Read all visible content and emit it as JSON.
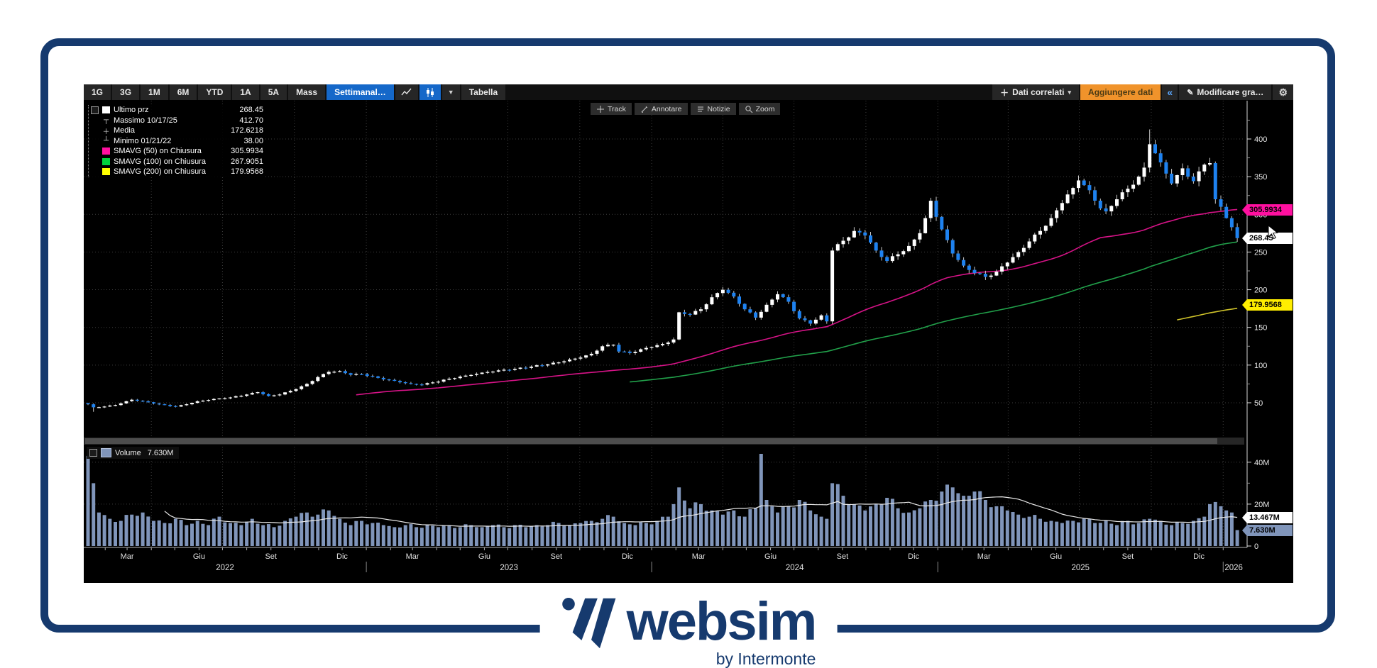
{
  "brand": {
    "logo_text": "websim",
    "logo_sub": "by Intermonte",
    "navy": "#163a6e"
  },
  "toolbar": {
    "ranges": [
      "1G",
      "3G",
      "1M",
      "6M",
      "YTD",
      "1A",
      "5A",
      "Mass"
    ],
    "period_label": "Settimanal…",
    "table_label": "Tabella",
    "related_data_label": "Dati correlati",
    "add_data_label": "Aggiungere dati",
    "collapse_label": "«",
    "modify_label": "Modificare gra…",
    "selected_color": "#1568c9",
    "add_data_color": "#f0932b"
  },
  "mini_toolbar": [
    {
      "icon": "track-icon",
      "label": "Track"
    },
    {
      "icon": "annotate-icon",
      "label": "Annotare"
    },
    {
      "icon": "news-icon",
      "label": "Notizie"
    },
    {
      "icon": "zoom-icon",
      "label": "Zoom"
    }
  ],
  "legend": [
    {
      "icon": "white-square",
      "label": "Ultimo prz",
      "value": "268.45"
    },
    {
      "icon": "high-marker",
      "label": "Massimo 10/17/25",
      "value": "412.70"
    },
    {
      "icon": "mean-marker",
      "label": "Media",
      "value": "172.6218"
    },
    {
      "icon": "low-marker",
      "label": "Minimo 01/21/22",
      "value": "38.00"
    },
    {
      "swatch": "#ff10a0",
      "label": "SMAVG (50)  on Chiusura",
      "value": "305.9934"
    },
    {
      "swatch": "#00d23c",
      "label": "SMAVG (100)  on Chiusura",
      "value": "267.9051"
    },
    {
      "swatch": "#ffff00",
      "label": "SMAVG (200)  on Chiusura",
      "value": "179.9568"
    }
  ],
  "volume_legend": {
    "label": "Volume",
    "value": "7.630M"
  },
  "price_axis": {
    "tick_values": [
      50,
      100,
      150,
      200,
      250,
      300,
      350,
      400
    ],
    "tags": [
      {
        "text": "305.9934",
        "color": "#ff10a0",
        "value": 305.9934
      },
      {
        "text": "268.45",
        "color": "#ffffff",
        "value": 268.45
      },
      {
        "text": "179.9568",
        "color": "#ffee00",
        "value": 179.9568
      }
    ]
  },
  "volume_axis": {
    "ticks": [
      {
        "value": 40,
        "label": "40M"
      },
      {
        "value": 20,
        "label": "20M"
      },
      {
        "value": 0,
        "label": "0"
      }
    ],
    "tags": [
      {
        "text": "13.467M",
        "color": "#ffffff",
        "value": 13.467
      },
      {
        "text": "7.630M",
        "color": "#8095ba",
        "value": 7.63
      }
    ]
  },
  "x_axis": {
    "month_labels": [
      "Mar",
      "Giu",
      "Set",
      "Dic"
    ],
    "label_month_indices": [
      2,
      5,
      8,
      11
    ],
    "years": [
      2022,
      2023,
      2024,
      2025,
      2026
    ]
  },
  "chart_data": {
    "type": "candlestick",
    "period": "weekly",
    "start_date": "2022-01-10",
    "weeks": 211,
    "max": {
      "date": "10/17/25",
      "value": 412.7,
      "week": 194
    },
    "min": {
      "date": "01/21/22",
      "value": 38.0,
      "week": 1
    },
    "last_close": 268.45,
    "last_volume_m": 7.63,
    "volume_ma_last_m": 13.467,
    "up_color": "#ffffff",
    "down_color": "#1e82f0",
    "wick_color": "#c9c9c9",
    "volume_color": "#8095ba",
    "grid_color": "#3e3e3e",
    "sma": [
      {
        "period": 50,
        "color": "#d61387",
        "last": 305.9934
      },
      {
        "period": 100,
        "color": "#21a04a",
        "last": 267.9051
      },
      {
        "period": 200,
        "color": "#cfc32a",
        "last": 179.9568
      }
    ],
    "close_anchors": [
      [
        0,
        48
      ],
      [
        1,
        44
      ],
      [
        3,
        45
      ],
      [
        5,
        47
      ],
      [
        8,
        54
      ],
      [
        10,
        52
      ],
      [
        13,
        48
      ],
      [
        16,
        45
      ],
      [
        18,
        48
      ],
      [
        20,
        52
      ],
      [
        23,
        55
      ],
      [
        26,
        57
      ],
      [
        29,
        61
      ],
      [
        31,
        64
      ],
      [
        33,
        59
      ],
      [
        35,
        61
      ],
      [
        38,
        68
      ],
      [
        40,
        75
      ],
      [
        42,
        84
      ],
      [
        44,
        91
      ],
      [
        46,
        92
      ],
      [
        48,
        87
      ],
      [
        50,
        88
      ],
      [
        53,
        83
      ],
      [
        56,
        79
      ],
      [
        59,
        75
      ],
      [
        61,
        74
      ],
      [
        63,
        77
      ],
      [
        66,
        82
      ],
      [
        69,
        86
      ],
      [
        72,
        90
      ],
      [
        75,
        93
      ],
      [
        78,
        95
      ],
      [
        81,
        98
      ],
      [
        84,
        101
      ],
      [
        87,
        105
      ],
      [
        90,
        110
      ],
      [
        92,
        115
      ],
      [
        94,
        125
      ],
      [
        96,
        127
      ],
      [
        97,
        118
      ],
      [
        99,
        116
      ],
      [
        101,
        121
      ],
      [
        103,
        124
      ],
      [
        105,
        128
      ],
      [
        106,
        130
      ],
      [
        107,
        134
      ],
      [
        108,
        170
      ],
      [
        110,
        167
      ],
      [
        112,
        174
      ],
      [
        114,
        190
      ],
      [
        116,
        200
      ],
      [
        118,
        191
      ],
      [
        120,
        174
      ],
      [
        122,
        163
      ],
      [
        124,
        180
      ],
      [
        126,
        194
      ],
      [
        128,
        184
      ],
      [
        130,
        162
      ],
      [
        132,
        155
      ],
      [
        134,
        166
      ],
      [
        135,
        158
      ],
      [
        136,
        252
      ],
      [
        138,
        265
      ],
      [
        140,
        278
      ],
      [
        142,
        272
      ],
      [
        144,
        252
      ],
      [
        146,
        238
      ],
      [
        148,
        247
      ],
      [
        150,
        258
      ],
      [
        152,
        275
      ],
      [
        153,
        295
      ],
      [
        154,
        318
      ],
      [
        156,
        280
      ],
      [
        158,
        248
      ],
      [
        160,
        232
      ],
      [
        162,
        222
      ],
      [
        164,
        217
      ],
      [
        166,
        224
      ],
      [
        168,
        236
      ],
      [
        170,
        250
      ],
      [
        172,
        264
      ],
      [
        174,
        278
      ],
      [
        176,
        295
      ],
      [
        178,
        315
      ],
      [
        180,
        335
      ],
      [
        181,
        345
      ],
      [
        183,
        332
      ],
      [
        185,
        308
      ],
      [
        186,
        304
      ],
      [
        188,
        320
      ],
      [
        190,
        334
      ],
      [
        192,
        350
      ],
      [
        193,
        362
      ],
      [
        194,
        393
      ],
      [
        195,
        381
      ],
      [
        196,
        369
      ],
      [
        197,
        354
      ],
      [
        198,
        341
      ],
      [
        199,
        352
      ],
      [
        200,
        361
      ],
      [
        201,
        350
      ],
      [
        202,
        344
      ],
      [
        203,
        357
      ],
      [
        204,
        366
      ],
      [
        205,
        368
      ],
      [
        206,
        320
      ],
      [
        207,
        310
      ],
      [
        208,
        295
      ],
      [
        209,
        283
      ],
      [
        210,
        268.45
      ]
    ],
    "volume_anchors_m": [
      [
        0,
        43
      ],
      [
        1,
        30
      ],
      [
        2,
        16
      ],
      [
        4,
        13
      ],
      [
        6,
        12
      ],
      [
        8,
        15
      ],
      [
        10,
        16
      ],
      [
        12,
        12
      ],
      [
        14,
        11
      ],
      [
        16,
        13
      ],
      [
        18,
        10
      ],
      [
        20,
        12
      ],
      [
        22,
        10
      ],
      [
        24,
        14
      ],
      [
        26,
        11
      ],
      [
        28,
        10
      ],
      [
        30,
        13
      ],
      [
        32,
        10
      ],
      [
        34,
        9
      ],
      [
        36,
        12
      ],
      [
        38,
        14
      ],
      [
        40,
        16
      ],
      [
        42,
        15
      ],
      [
        44,
        17
      ],
      [
        46,
        13
      ],
      [
        48,
        10
      ],
      [
        50,
        12
      ],
      [
        52,
        11
      ],
      [
        54,
        10
      ],
      [
        56,
        9
      ],
      [
        58,
        10
      ],
      [
        60,
        9
      ],
      [
        62,
        10
      ],
      [
        64,
        9
      ],
      [
        66,
        10
      ],
      [
        68,
        9
      ],
      [
        70,
        10
      ],
      [
        72,
        9
      ],
      [
        74,
        10
      ],
      [
        76,
        9
      ],
      [
        78,
        10
      ],
      [
        80,
        9
      ],
      [
        82,
        10
      ],
      [
        84,
        10
      ],
      [
        86,
        11
      ],
      [
        88,
        10
      ],
      [
        90,
        11
      ],
      [
        92,
        12
      ],
      [
        94,
        13
      ],
      [
        96,
        14
      ],
      [
        98,
        11
      ],
      [
        100,
        10
      ],
      [
        102,
        11
      ],
      [
        104,
        12
      ],
      [
        106,
        14
      ],
      [
        107,
        20
      ],
      [
        108,
        28
      ],
      [
        110,
        18
      ],
      [
        112,
        20
      ],
      [
        114,
        17
      ],
      [
        116,
        15
      ],
      [
        118,
        17
      ],
      [
        120,
        14
      ],
      [
        122,
        18
      ],
      [
        123,
        44
      ],
      [
        124,
        22
      ],
      [
        126,
        16
      ],
      [
        128,
        19
      ],
      [
        130,
        22
      ],
      [
        132,
        17
      ],
      [
        134,
        14
      ],
      [
        135,
        13
      ],
      [
        136,
        30
      ],
      [
        138,
        24
      ],
      [
        140,
        20
      ],
      [
        142,
        17
      ],
      [
        144,
        20
      ],
      [
        146,
        23
      ],
      [
        148,
        18
      ],
      [
        150,
        16
      ],
      [
        152,
        18
      ],
      [
        154,
        22
      ],
      [
        156,
        26
      ],
      [
        158,
        28
      ],
      [
        160,
        24
      ],
      [
        162,
        26
      ],
      [
        164,
        22
      ],
      [
        166,
        19
      ],
      [
        168,
        17
      ],
      [
        170,
        15
      ],
      [
        172,
        14
      ],
      [
        174,
        13
      ],
      [
        176,
        12
      ],
      [
        178,
        11
      ],
      [
        180,
        12
      ],
      [
        182,
        13
      ],
      [
        184,
        11
      ],
      [
        186,
        12
      ],
      [
        188,
        10
      ],
      [
        190,
        12
      ],
      [
        192,
        11
      ],
      [
        194,
        13
      ],
      [
        196,
        12
      ],
      [
        198,
        10
      ],
      [
        200,
        11
      ],
      [
        202,
        12
      ],
      [
        204,
        14
      ],
      [
        205,
        20
      ],
      [
        206,
        21
      ],
      [
        207,
        19
      ],
      [
        208,
        17
      ],
      [
        209,
        16
      ],
      [
        210,
        7.63
      ]
    ]
  }
}
